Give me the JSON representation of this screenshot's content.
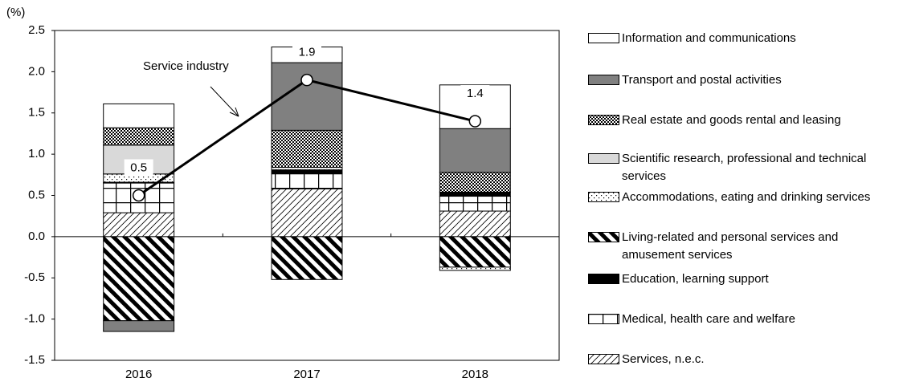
{
  "chart_data": {
    "type": "stacked-bar-line",
    "y_label": "(%)",
    "categories": [
      "2016",
      "2017",
      "2018"
    ],
    "ylim": [
      -1.5,
      2.5
    ],
    "yticks": [
      -1.5,
      {
        "value": -1,
        "label": "-1.0"
      },
      -0.5,
      {
        "value": 0,
        "label": "0.0"
      },
      0.5,
      {
        "value": 1,
        "label": "1.0"
      },
      1.5,
      {
        "value": 2,
        "label": "2.0"
      },
      2.5
    ],
    "series": [
      {
        "name": "Services, n.e.c.",
        "color": "#000000",
        "pattern": "hatch-up",
        "values": [
          0.29,
          0.58,
          0.31
        ]
      },
      {
        "name": "Medical, health care and welfare",
        "color": "#000000",
        "pattern": "grid",
        "values": [
          0.36,
          0.19,
          0.18
        ]
      },
      {
        "name": "Education, learning support",
        "color": "#000000",
        "values": [
          0.01,
          0.04,
          0.05
        ]
      },
      {
        "name": "Living-related and personal services and amusement services",
        "color": "#000000",
        "pattern": "stripes-down",
        "values": [
          -1.02,
          -0.52,
          -0.37
        ]
      },
      {
        "name": "Accommodations, eating and drinking services",
        "color": "#000000",
        "pattern": "dots",
        "values": [
          0.1,
          0.03,
          -0.04
        ]
      },
      {
        "name": "Scientific research, professional and technical services",
        "color": "#d9d9d9",
        "values": [
          0.35,
          0,
          0
        ]
      },
      {
        "name": "Real estate and goods rental and leasing",
        "color": "#000000",
        "pattern": "checker",
        "values": [
          0.21,
          0.45,
          0.24
        ]
      },
      {
        "name": "Transport and postal activities",
        "color": "#808080",
        "values": [
          -0.13,
          0.82,
          0.53
        ]
      },
      {
        "name": "Information and communications",
        "color": "#ffffff",
        "values": [
          0.29,
          0.19,
          0.53
        ]
      }
    ],
    "line": {
      "name": "Service industry",
      "color": "#000000",
      "values": [
        0.5,
        1.9,
        1.4
      ]
    }
  }
}
